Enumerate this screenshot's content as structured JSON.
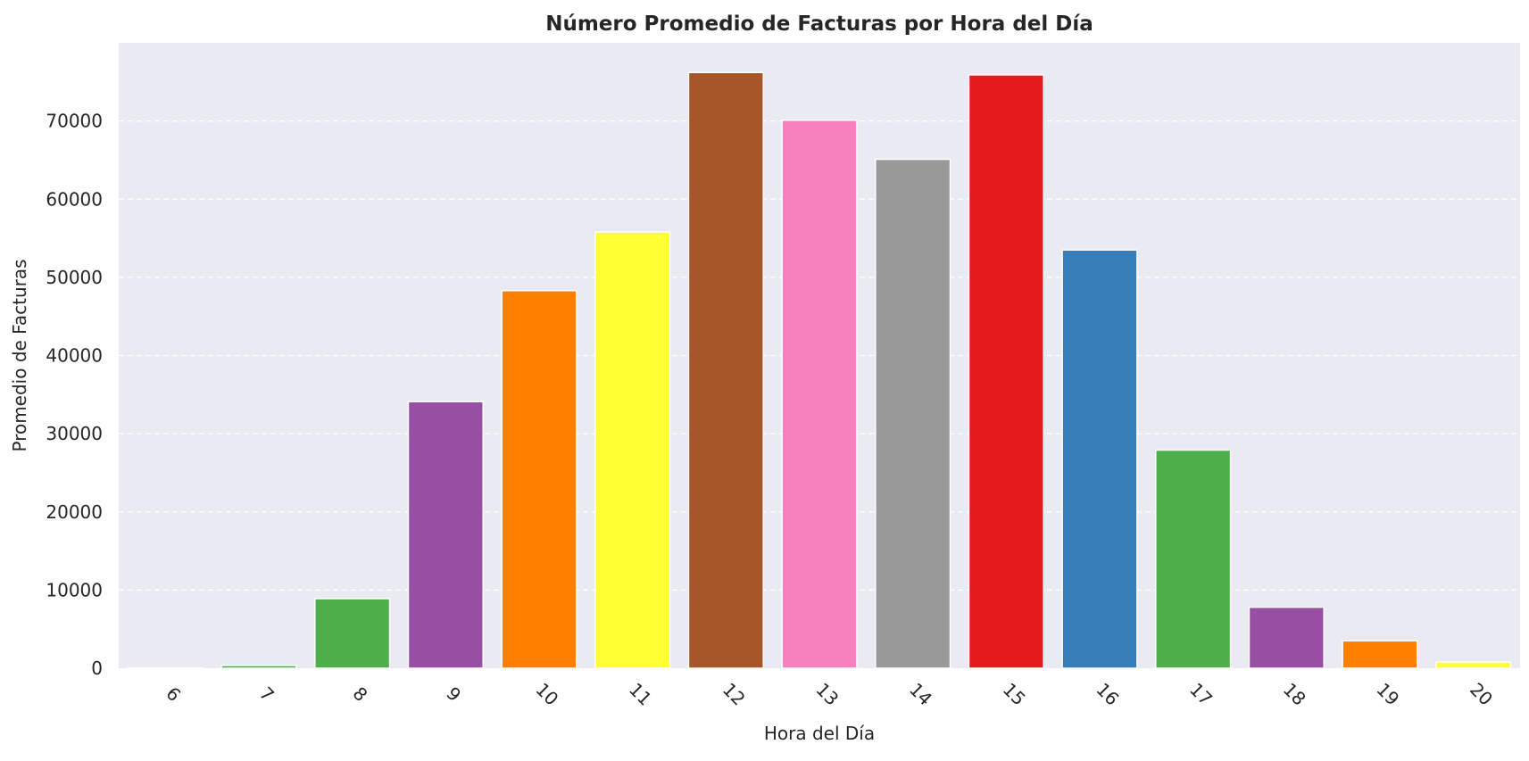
{
  "chart_data": {
    "type": "bar",
    "title": "Número Promedio de Facturas por Hora del Día",
    "xlabel": "Hora del Día",
    "ylabel": "Promedio de Facturas",
    "categories": [
      "6",
      "7",
      "8",
      "9",
      "10",
      "11",
      "12",
      "13",
      "14",
      "15",
      "16",
      "17",
      "18",
      "19",
      "20"
    ],
    "values": [
      40,
      350,
      8900,
      34100,
      48300,
      55800,
      76200,
      70100,
      65100,
      75900,
      53500,
      27900,
      7800,
      3500,
      800
    ],
    "ylim": [
      0,
      80000
    ],
    "yticks": [
      0,
      10000,
      20000,
      30000,
      40000,
      50000,
      60000,
      70000
    ],
    "ytick_labels": [
      "0",
      "10000",
      "20000",
      "30000",
      "40000",
      "50000",
      "60000",
      "70000"
    ],
    "grid": "y-dashed",
    "legend": "none",
    "plot_background": "#eaeaf2",
    "grid_color": "#ffffff",
    "bar_colors": [
      "#377eb8",
      "#4daf4a",
      "#4daf4a",
      "#984ea3",
      "#ff7f00",
      "#ffff33",
      "#a65628",
      "#f781bf",
      "#999999",
      "#e41a1c",
      "#377eb8",
      "#4daf4a",
      "#984ea3",
      "#ff7f00",
      "#ffff33"
    ]
  }
}
